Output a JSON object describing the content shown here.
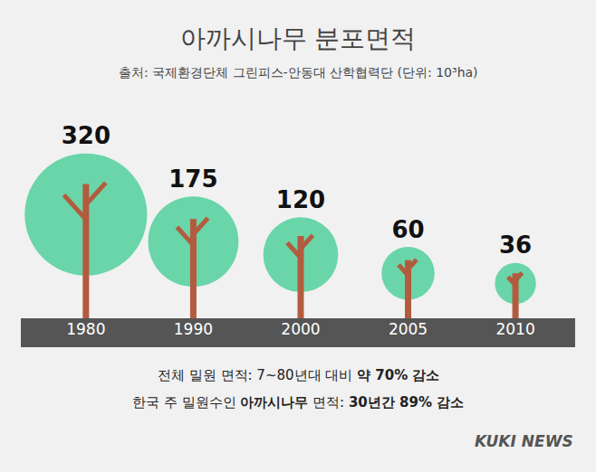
{
  "chart_data": {
    "type": "pictograph",
    "title": "아까시나무 분포면적",
    "subtitle": "출처: 국제환경단체 그린피스-안동대 산학협력단 (단위: 10³ha)",
    "categories": [
      "1980",
      "1990",
      "2000",
      "2005",
      "2010"
    ],
    "values": [
      320,
      175,
      120,
      60,
      36
    ],
    "color": "#2fc98a",
    "data_labels": true,
    "tick_labels": "x",
    "grid": false,
    "notes": [
      [
        "전체 밀원 면적: 7~80년대 대비 ",
        "약 70% 감소"
      ],
      [
        "한국 주 밀원수인 ",
        "아까시나무",
        " 면적: ",
        "30년간 89% 감소"
      ]
    ],
    "brand": "KUKI NEWS"
  }
}
